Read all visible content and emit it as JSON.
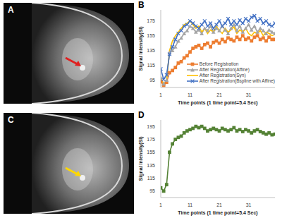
{
  "images": [
    {
      "label": "A"
    },
    {
      "label": "C"
    }
  ],
  "chart_data": [
    {
      "type": "line",
      "title": "B",
      "x_label": "Time points  (1 time point=5.4 Sec)",
      "y_label": "Signal Intensity(SI)",
      "x": [
        1,
        2,
        3,
        4,
        5,
        6,
        7,
        8,
        9,
        10,
        11,
        12,
        13,
        14,
        15,
        16,
        17,
        18,
        19,
        20,
        21,
        22,
        23,
        24,
        25,
        26,
        27,
        28,
        29,
        30,
        31,
        32,
        33,
        34,
        35,
        36,
        37,
        38,
        39,
        40
      ],
      "xlim": [
        1,
        40
      ],
      "xticks": [
        1,
        11,
        21,
        31
      ],
      "ylim": [
        85,
        190
      ],
      "yticks": [
        95,
        115,
        135,
        155,
        175
      ],
      "grid": false,
      "legend": "lower right",
      "series": [
        {
          "name": "Before Registration",
          "color": "#ed7d31",
          "marker": "square",
          "values": [
            93,
            88,
            92,
            105,
            108,
            112,
            118,
            120,
            125,
            128,
            133,
            138,
            140,
            142,
            138,
            143,
            145,
            140,
            146,
            148,
            145,
            150,
            147,
            152,
            150,
            148,
            153,
            150,
            155,
            150,
            152,
            148,
            153,
            155,
            150,
            152,
            148,
            153,
            150,
            150
          ]
        },
        {
          "name": "After Registration(Affine)",
          "color": "#a5a5a5",
          "marker": "triangle",
          "values": [
            98,
            90,
            95,
            132,
            135,
            140,
            148,
            152,
            158,
            162,
            168,
            165,
            160,
            163,
            158,
            165,
            162,
            168,
            160,
            165,
            162,
            168,
            163,
            158,
            165,
            170,
            162,
            168,
            160,
            165,
            170,
            163,
            168,
            160,
            165,
            162,
            158,
            163,
            160,
            158
          ]
        },
        {
          "name": "After Registration(Syn)",
          "color": "#ffc000",
          "marker": "none",
          "values": [
            100,
            88,
            94,
            135,
            148,
            155,
            160,
            165,
            170,
            172,
            175,
            170,
            165,
            168,
            160,
            165,
            158,
            163,
            160,
            168,
            162,
            158,
            165,
            160,
            163,
            167,
            158,
            163,
            160,
            165,
            158,
            155,
            160,
            158,
            162,
            155,
            160,
            158,
            155,
            157
          ]
        },
        {
          "name": "After Registration(Bspline with Affine)",
          "color": "#4472c4",
          "marker": "cross",
          "values": [
            110,
            96,
            102,
            130,
            140,
            150,
            158,
            162,
            168,
            170,
            175,
            172,
            168,
            165,
            170,
            175,
            168,
            172,
            165,
            170,
            175,
            168,
            172,
            178,
            170,
            175,
            170,
            176,
            172,
            178,
            175,
            180,
            182,
            175,
            178,
            172,
            175,
            170,
            168,
            172
          ]
        }
      ]
    },
    {
      "type": "line",
      "title": "D",
      "x_label": "Time points  (1 time point=5.4 Sec)",
      "y_label": "Signal Intensity(SI)",
      "x": [
        1,
        2,
        3,
        4,
        5,
        6,
        7,
        8,
        9,
        10,
        11,
        12,
        13,
        14,
        15,
        16,
        17,
        18,
        19,
        20,
        21,
        22,
        23,
        24,
        25,
        26,
        27,
        28,
        29,
        30,
        31,
        32,
        33,
        34,
        35,
        36,
        37,
        38,
        39,
        40
      ],
      "xlim": [
        1,
        40
      ],
      "xticks": [
        1,
        11,
        21,
        31
      ],
      "ylim": [
        85,
        205
      ],
      "yticks": [
        95,
        115,
        135,
        155,
        175,
        195
      ],
      "grid": false,
      "series": [
        {
          "color": "#548235",
          "marker": "square",
          "values": [
            100,
            95,
            105,
            155,
            168,
            175,
            178,
            180,
            185,
            188,
            190,
            192,
            195,
            193,
            195,
            192,
            188,
            190,
            192,
            190,
            188,
            192,
            190,
            188,
            190,
            193,
            188,
            190,
            187,
            190,
            188,
            185,
            188,
            190,
            187,
            185,
            183,
            185,
            182,
            183
          ]
        }
      ]
    }
  ]
}
